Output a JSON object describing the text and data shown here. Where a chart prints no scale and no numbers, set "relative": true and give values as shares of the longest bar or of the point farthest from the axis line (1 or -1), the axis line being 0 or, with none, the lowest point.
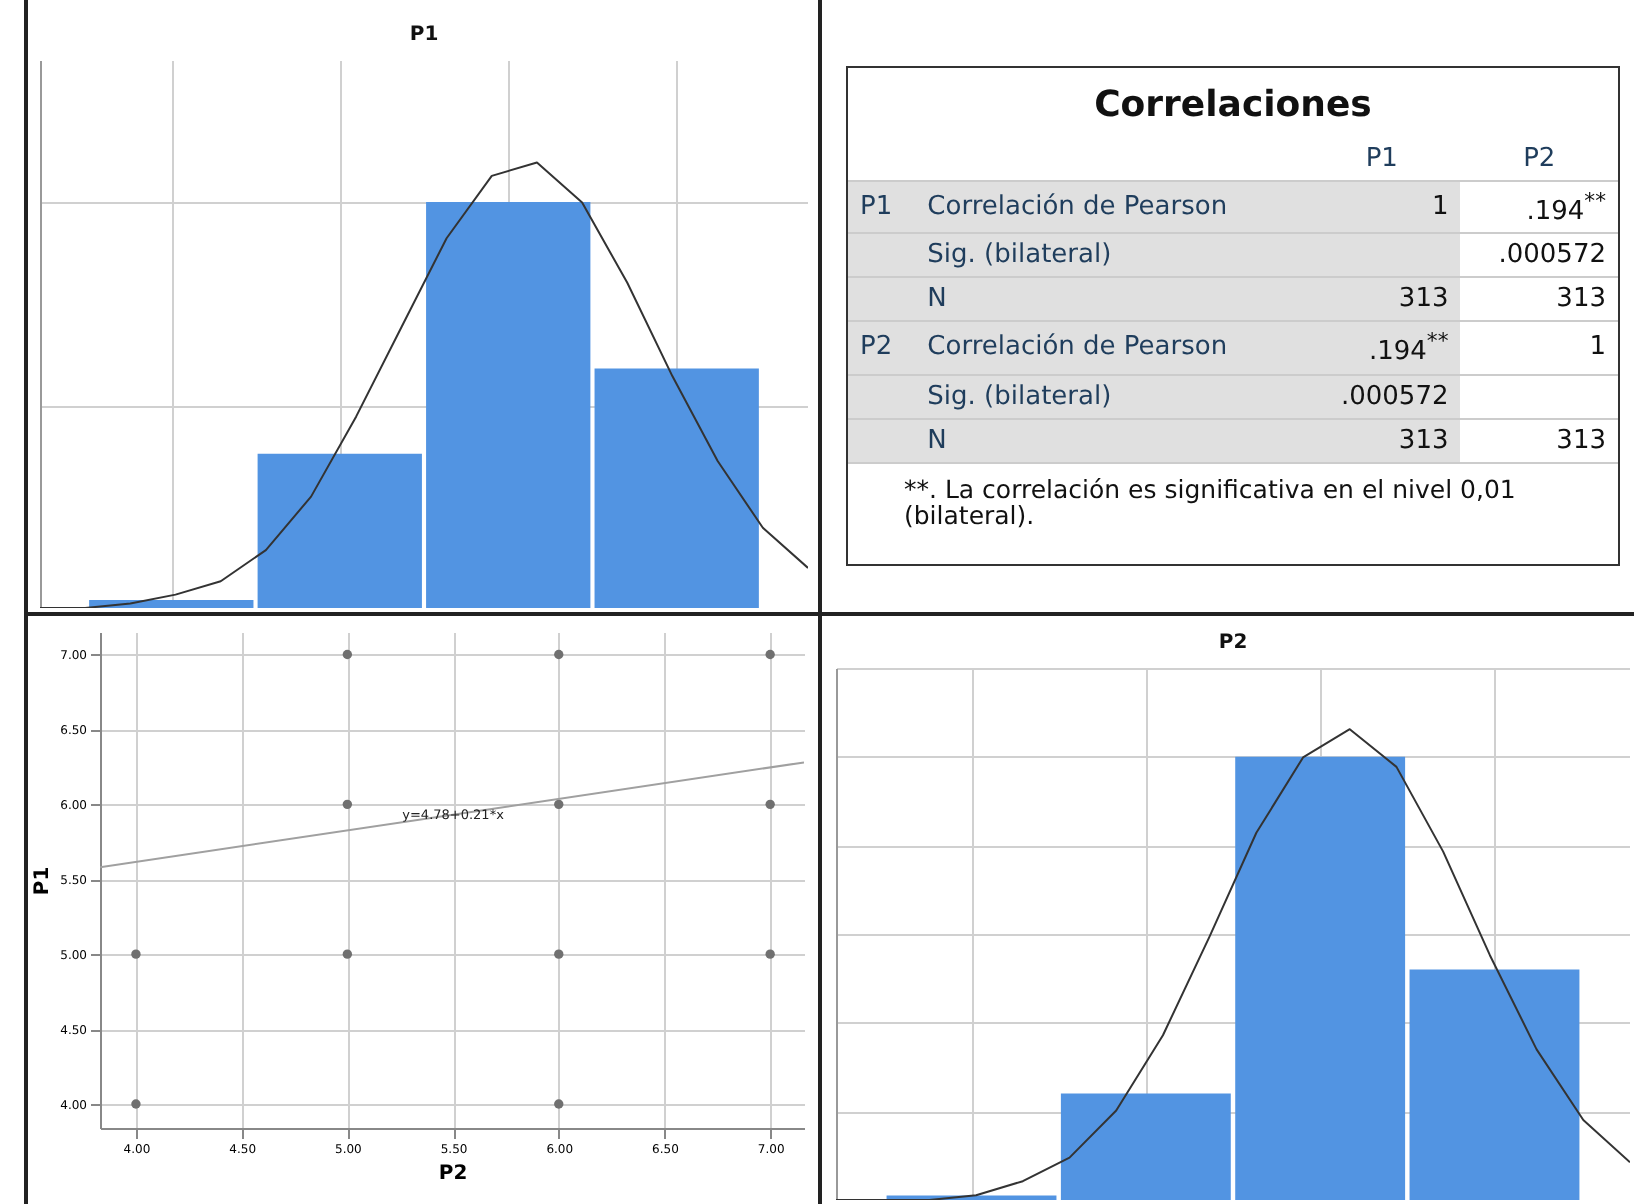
{
  "chart_data": [
    {
      "type": "bar",
      "title": "P1",
      "relative": true,
      "grid": true,
      "categories": [
        null,
        null,
        null,
        null
      ],
      "series": [
        {
          "color": "#5294e2",
          "values": [
            0.02,
            0.38,
            1,
            0.59
          ]
        }
      ]
    },
    {
      "type": "line",
      "relative": true,
      "categories": [
        null,
        null,
        null,
        null,
        null,
        null,
        null,
        null,
        null,
        null,
        null,
        null,
        null,
        null,
        null,
        null,
        null,
        null
      ],
      "series": [
        {
          "color": "#333333",
          "values": [
            0,
            0,
            0.01,
            0.03,
            0.06,
            0.13,
            0.25,
            0.43,
            0.63,
            0.83,
            0.97,
            1,
            0.91,
            0.73,
            0.52,
            0.33,
            0.18,
            0.09
          ]
        }
      ]
    },
    {
      "type": "other",
      "title": "Correlaciones",
      "annotations": [
        "P1",
        "P2",
        "P1",
        "Correlación de Pearson",
        "1",
        ".194$^{**}$",
        "Sig. (bilateral)",
        ".000572",
        "N",
        "313",
        "313",
        "P2",
        "Correlación de Pearson",
        ".194$^{**}$",
        "1",
        "Sig. (bilateral)",
        ".000572",
        "N",
        "313",
        "313",
        "**. La correlación es significativa en el nivel 0,01 (bilateral)."
      ]
    },
    {
      "type": "scatter",
      "xlabel": "P2",
      "ylabel": "P1",
      "grid": true,
      "xlim": [
        3.83,
        7.16
      ],
      "ylim": [
        3.84,
        7.15
      ],
      "xticks": [
        {
          "value": 4,
          "label": "4.00"
        },
        {
          "value": 4.5,
          "label": "4.50"
        },
        {
          "value": 5,
          "label": "5.00"
        },
        {
          "value": 5.5,
          "label": "5.50"
        },
        {
          "value": 6,
          "label": "6.00"
        },
        {
          "value": 6.5,
          "label": "6.50"
        },
        {
          "value": 7,
          "label": "7.00"
        }
      ],
      "yticks": [
        {
          "value": 4,
          "label": "4.00"
        },
        {
          "value": 4.5,
          "label": "4.50"
        },
        {
          "value": 5,
          "label": "5.00"
        },
        {
          "value": 5.5,
          "label": "5.50"
        },
        {
          "value": 6,
          "label": "6.00"
        },
        {
          "value": 6.5,
          "label": "6.50"
        },
        {
          "value": 7,
          "label": "7.00"
        }
      ],
      "series": [
        {
          "type": "scatter",
          "marker": "circle",
          "color": "#707070",
          "x": [
            4,
            4,
            5,
            5,
            5,
            6,
            6,
            6,
            6,
            7,
            7,
            7
          ],
          "values": [
            5,
            4,
            7,
            6,
            5,
            7,
            6,
            5,
            4,
            7,
            6,
            5
          ]
        },
        {
          "type": "line",
          "color": "#a0a0a0",
          "x": [
            3.83,
            7.16
          ],
          "values": [
            5.58,
            6.28
          ]
        }
      ],
      "annotations": [
        {
          "text": "y=4.78+0.21*x",
          "x": 5.5,
          "y": 5.93
        }
      ]
    },
    {
      "type": "bar",
      "title": "P2",
      "relative": true,
      "grid": true,
      "categories": [
        null,
        null,
        null,
        null
      ],
      "series": [
        {
          "color": "#5294e2",
          "values": [
            0.01,
            0.24,
            1,
            0.52
          ]
        }
      ]
    },
    {
      "type": "line",
      "relative": true,
      "categories": [
        null,
        null,
        null,
        null,
        null,
        null,
        null,
        null,
        null,
        null,
        null,
        null,
        null,
        null,
        null,
        null,
        null,
        null
      ],
      "series": [
        {
          "color": "#333333",
          "values": [
            0,
            0,
            0,
            0.01,
            0.04,
            0.09,
            0.19,
            0.35,
            0.56,
            0.78,
            0.94,
            1,
            0.92,
            0.74,
            0.52,
            0.32,
            0.17,
            0.08
          ]
        }
      ]
    }
  ]
}
